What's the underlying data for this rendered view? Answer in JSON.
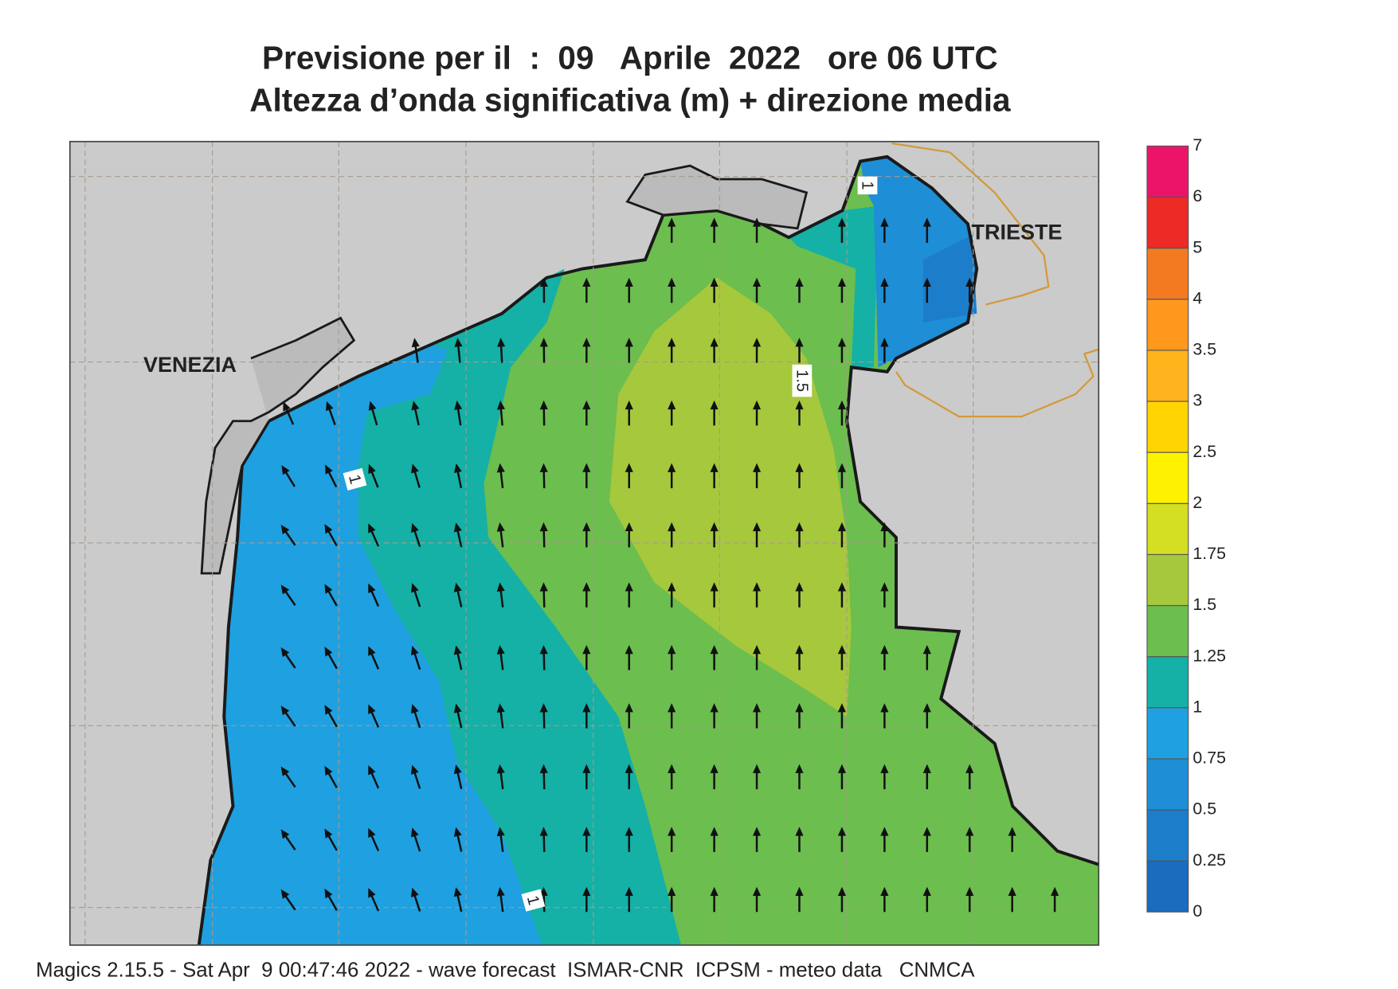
{
  "title": {
    "line1": "Previsione per il  :  09   Aprile  2022   ore 06 UTC",
    "line2": "Altezza d’onda significativa (m) + direzione media"
  },
  "map": {
    "place_labels": [
      "VENEZIA",
      "TRIESTE"
    ],
    "contour_labels": [
      1,
      1,
      1.5,
      1
    ]
  },
  "legend": {
    "levels": [
      0,
      0.25,
      0.5,
      0.75,
      1,
      1.25,
      1.5,
      1.75,
      2,
      2.5,
      3,
      3.5,
      4,
      5,
      6,
      7
    ],
    "colors": [
      "#1a6cbf",
      "#1c7dcb",
      "#1e8ed7",
      "#1fa0e0",
      "#15b0a6",
      "#6cbe4e",
      "#a6c83c",
      "#d4de22",
      "#fff200",
      "#ffd400",
      "#ffb31c",
      "#ff981c",
      "#f47a22",
      "#ec2a26",
      "#ec1468"
    ]
  },
  "footer": "Magics 2.15.5 - Sat Apr  9 00:47:46 2022 - wave forecast  ISMAR-CNR  ICPSM - meteo data   CNMCA"
}
